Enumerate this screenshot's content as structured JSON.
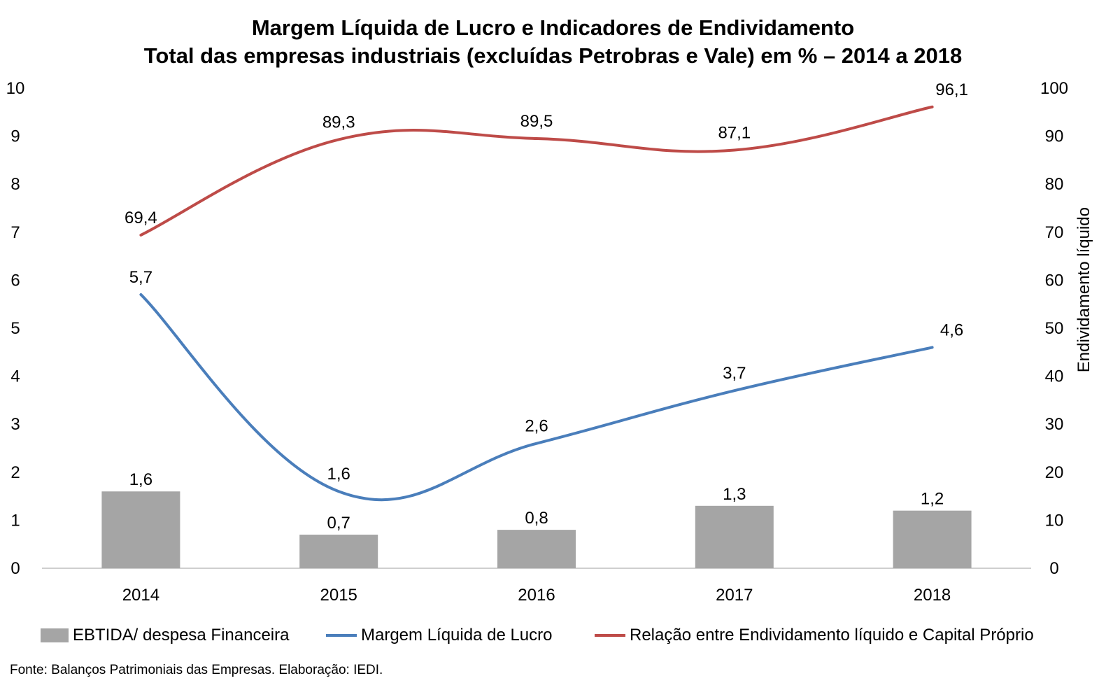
{
  "title": {
    "line1": "Margem Líquida de Lucro e Indicadores de Endividamento",
    "line2": "Total das empresas industriais (excluídas Petrobras e Vale) em % – 2014 a 2018"
  },
  "chart_data": {
    "type": "bar+line",
    "categories": [
      "2014",
      "2015",
      "2016",
      "2017",
      "2018"
    ],
    "series": [
      {
        "name": "EBTIDA/ despesa Financeira",
        "type": "bar",
        "axis": "left",
        "values": [
          1.6,
          0.7,
          0.8,
          1.3,
          1.2
        ],
        "labels": [
          "1,6",
          "0,7",
          "0,8",
          "1,3",
          "1,2"
        ],
        "color": "#a5a5a5"
      },
      {
        "name": "Margem Líquida de Lucro",
        "type": "line",
        "smooth": true,
        "axis": "left",
        "values": [
          5.7,
          1.6,
          2.6,
          3.7,
          4.6
        ],
        "labels": [
          "5,7",
          "1,6",
          "2,6",
          "3,7",
          "4,6"
        ],
        "color": "#4a7ebb"
      },
      {
        "name": "Relação entre Endividamento líquido e Capital Próprio",
        "type": "line",
        "smooth": true,
        "axis": "right",
        "values": [
          69.4,
          89.3,
          89.5,
          87.1,
          96.1
        ],
        "labels": [
          "69,4",
          "89,3",
          "89,5",
          "87,1",
          "96,1"
        ],
        "color": "#be4b48"
      }
    ],
    "y_left": {
      "min": 0,
      "max": 10,
      "ticks": [
        "0",
        "1",
        "2",
        "3",
        "4",
        "5",
        "6",
        "7",
        "8",
        "9",
        "10"
      ]
    },
    "y_right": {
      "min": 0,
      "max": 100,
      "label": "Endividamento líquido",
      "ticks": [
        "0",
        "10",
        "20",
        "30",
        "40",
        "50",
        "60",
        "70",
        "80",
        "90",
        "100"
      ]
    },
    "grid": false,
    "legend_position": "bottom"
  },
  "legend": {
    "bar_label": "EBTIDA/ despesa Financeira",
    "blue_label": "Margem Líquida de Lucro",
    "red_label": "Relação entre Endividamento líquido e Capital Próprio"
  },
  "footer": "Fonte: Balanços Patrimoniais das Empresas. Elaboração: IEDI."
}
